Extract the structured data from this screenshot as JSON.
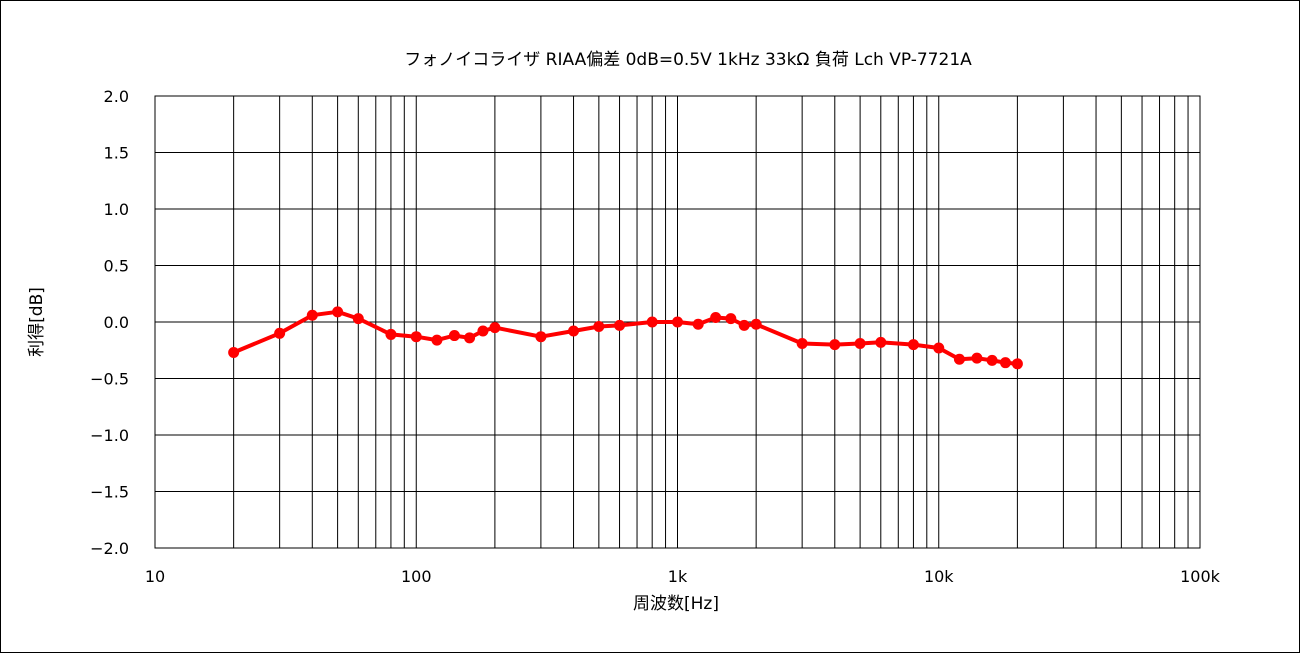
{
  "chart_data": {
    "type": "line",
    "title": "フォノイコライザ RIAA偏差 0dB=0.5V 1kHz 33kΩ 負荷 Lch VP-7721A",
    "xlabel": "周波数[Hz]",
    "ylabel": "利得[dB]",
    "x_scale": "log",
    "xlim": [
      10,
      100000
    ],
    "ylim": [
      -2.0,
      2.0
    ],
    "grid": true,
    "x_ticks": [
      {
        "value": 10,
        "label": "10"
      },
      {
        "value": 100,
        "label": "100"
      },
      {
        "value": 1000,
        "label": "1k"
      },
      {
        "value": 10000,
        "label": "10k"
      },
      {
        "value": 100000,
        "label": "100k"
      }
    ],
    "y_ticks": [
      {
        "value": 2.0,
        "label": "2.0"
      },
      {
        "value": 1.5,
        "label": "1.5"
      },
      {
        "value": 1.0,
        "label": "1.0"
      },
      {
        "value": 0.5,
        "label": "0.5"
      },
      {
        "value": 0.0,
        "label": "0.0"
      },
      {
        "value": -0.5,
        "label": "−0.5"
      },
      {
        "value": -1.0,
        "label": "−1.0"
      },
      {
        "value": -1.5,
        "label": "−1.5"
      },
      {
        "value": -2.0,
        "label": "−2.0"
      }
    ],
    "series": [
      {
        "color": "#ff0000",
        "x": [
          20,
          30,
          40,
          50,
          60,
          80,
          100,
          120,
          140,
          160,
          180,
          200,
          300,
          400,
          500,
          600,
          800,
          1000,
          1200,
          1400,
          1600,
          1800,
          2000,
          3000,
          4000,
          5000,
          6000,
          8000,
          10000,
          12000,
          14000,
          16000,
          18000,
          20000
        ],
        "y": [
          -0.27,
          -0.1,
          0.06,
          0.09,
          0.03,
          -0.11,
          -0.13,
          -0.16,
          -0.12,
          -0.14,
          -0.08,
          -0.05,
          -0.13,
          -0.08,
          -0.04,
          -0.03,
          0.0,
          0.0,
          -0.02,
          0.04,
          0.03,
          -0.03,
          -0.02,
          -0.19,
          -0.2,
          -0.19,
          -0.18,
          -0.2,
          -0.23,
          -0.33,
          -0.32,
          -0.34,
          -0.36,
          -0.37
        ]
      }
    ]
  }
}
